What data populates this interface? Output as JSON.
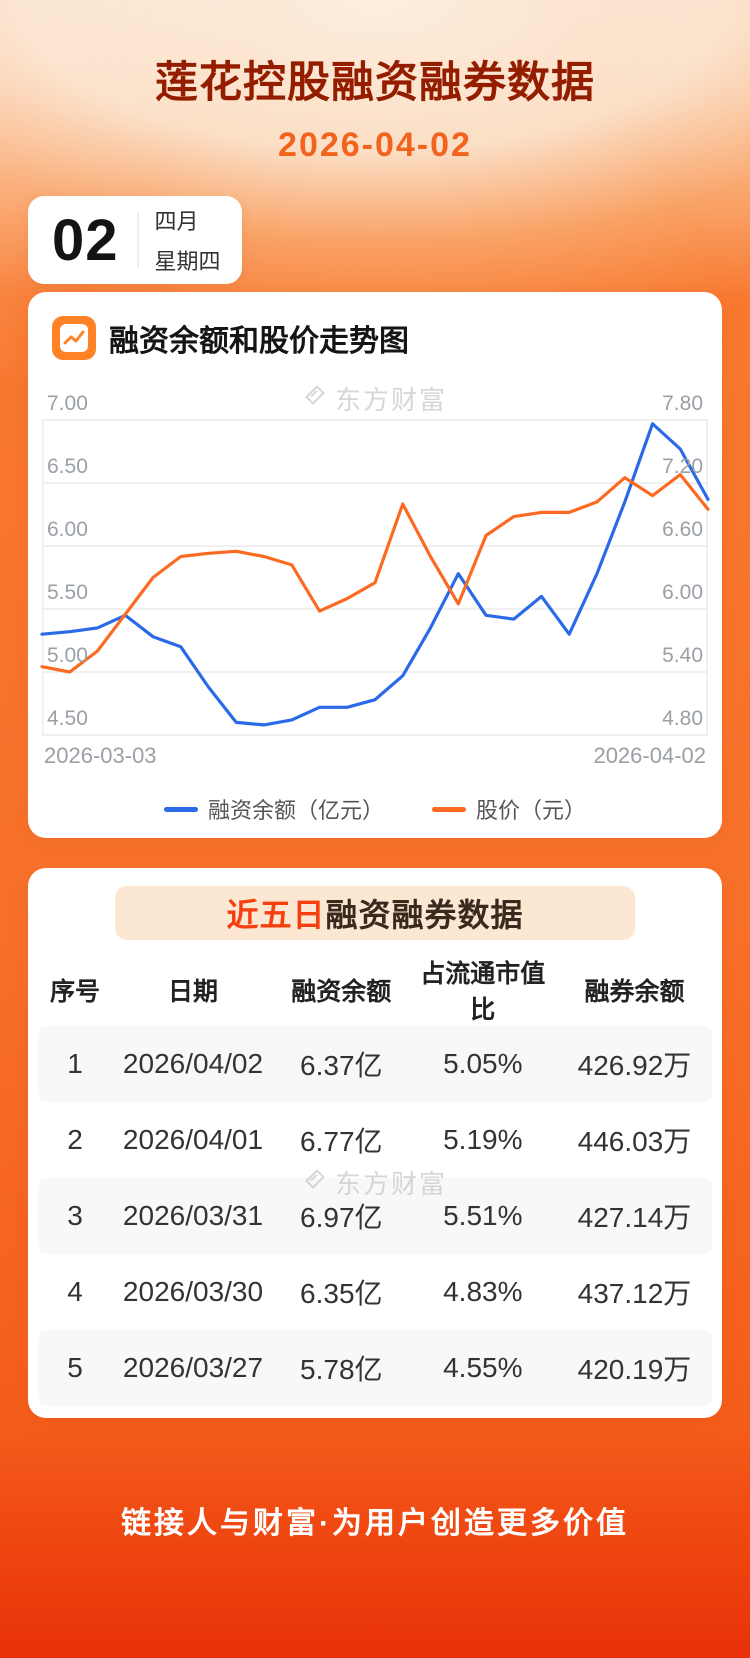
{
  "page": {
    "title": "莲花控股融资融券数据",
    "date": "2026-04-02",
    "footer": "链接人与财富·为用户创造更多价值"
  },
  "date_badge": {
    "day": "02",
    "month": "四月",
    "weekday": "星期四"
  },
  "chart_section": {
    "title": "融资余额和股价走势图",
    "watermark": "东方财富"
  },
  "chart_data": {
    "type": "line",
    "title": "融资余额和股价走势图",
    "x_start": "2026-03-03",
    "x_end": "2026-04-02",
    "grid": true,
    "legend_position": "bottom",
    "left_axis": {
      "label": "融资余额（亿元）",
      "range": [
        4.5,
        7.0
      ],
      "ticks": [
        "7.00",
        "6.50",
        "6.00",
        "5.50",
        "5.00",
        "4.50"
      ]
    },
    "right_axis": {
      "label": "股价（元）",
      "range": [
        4.8,
        7.8
      ],
      "ticks": [
        "7.80",
        "7.20",
        "6.60",
        "6.00",
        "5.40",
        "4.80"
      ]
    },
    "series": [
      {
        "name": "融资余额（亿元）",
        "axis": "left",
        "axis_range": [
          4.5,
          7.0
        ],
        "color": "#2a6ae9",
        "values": [
          5.3,
          5.32,
          5.35,
          5.45,
          5.28,
          5.2,
          4.88,
          4.6,
          4.58,
          4.62,
          4.72,
          4.72,
          4.78,
          4.97,
          5.35,
          5.78,
          5.45,
          5.42,
          5.6,
          5.3,
          5.78,
          6.35,
          6.97,
          6.77,
          6.37
        ]
      },
      {
        "name": "股价（元）",
        "axis": "right",
        "axis_range": [
          4.8,
          7.8
        ],
        "color": "#fc6a21",
        "values": [
          5.45,
          5.4,
          5.6,
          5.95,
          6.3,
          6.5,
          6.53,
          6.55,
          6.5,
          6.42,
          5.98,
          6.1,
          6.25,
          7.0,
          6.5,
          6.05,
          6.7,
          6.88,
          6.92,
          6.92,
          7.02,
          7.25,
          7.08,
          7.28,
          6.95
        ]
      }
    ]
  },
  "table": {
    "title_highlight": "近五日",
    "title_rest": "融资融券数据",
    "watermark": "东方财富",
    "headers": [
      "序号",
      "日期",
      "融资余额",
      "占流通市值比",
      "融券余额"
    ],
    "rows": [
      {
        "no": "1",
        "date": "2026/04/02",
        "balance": "6.37亿",
        "ratio": "5.05%",
        "short": "426.92万"
      },
      {
        "no": "2",
        "date": "2026/04/01",
        "balance": "6.77亿",
        "ratio": "5.19%",
        "short": "446.03万"
      },
      {
        "no": "3",
        "date": "2026/03/31",
        "balance": "6.97亿",
        "ratio": "5.51%",
        "short": "427.14万"
      },
      {
        "no": "4",
        "date": "2026/03/30",
        "balance": "6.35亿",
        "ratio": "4.83%",
        "short": "437.12万"
      },
      {
        "no": "5",
        "date": "2026/03/27",
        "balance": "5.78亿",
        "ratio": "4.55%",
        "short": "420.19万"
      }
    ]
  },
  "colors": {
    "background_orange": "#f7702a",
    "title_red": "#941d00",
    "accent_orange": "#f2641e",
    "financing_line_blue": "#2a6ae9",
    "price_line_orange": "#fc6a21",
    "banner_highlight_red": "#f53f0e"
  }
}
